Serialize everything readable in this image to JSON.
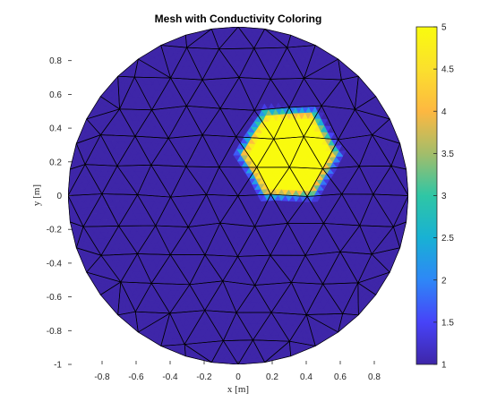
{
  "chart_data": {
    "type": "heatmap",
    "title": "Mesh with Conductivity Coloring",
    "xlabel": "x [m]",
    "ylabel": "y [m]",
    "xlim": [
      -1,
      1
    ],
    "ylim": [
      -1,
      1
    ],
    "xticks": [
      "-0.8",
      "-0.6",
      "-0.4",
      "-0.2",
      "0",
      "0.2",
      "0.4",
      "0.6",
      "0.8"
    ],
    "xtick_values": [
      -0.8,
      -0.6,
      -0.4,
      -0.2,
      0,
      0.2,
      0.4,
      0.6,
      0.8
    ],
    "yticks": [
      "-1",
      "-0.8",
      "-0.6",
      "-0.4",
      "-0.2",
      "0",
      "0.2",
      "0.4",
      "0.6",
      "0.8"
    ],
    "ytick_values": [
      -1,
      -0.8,
      -0.6,
      -0.4,
      -0.2,
      0,
      0.2,
      0.4,
      0.6,
      0.8
    ],
    "domain": {
      "shape": "disk",
      "center": [
        0,
        0
      ],
      "radius": 1
    },
    "conductivity": {
      "background": 1,
      "inclusion": 5,
      "inclusion_center": [
        0.3,
        0.25
      ],
      "inclusion_shape": "hexagon"
    },
    "colorbar": {
      "ticks": [
        "1",
        "1.5",
        "2",
        "2.5",
        "3",
        "3.5",
        "4",
        "4.5",
        "5"
      ],
      "tick_values": [
        1,
        1.5,
        2,
        2.5,
        3,
        3.5,
        4,
        4.5,
        5
      ],
      "range": [
        1,
        5
      ],
      "colormap": [
        "#3e26a8",
        "#4743f8",
        "#2e87f7",
        "#18b1d4",
        "#2fc6a5",
        "#a3bd6a",
        "#fdb841",
        "#fbe02d",
        "#f9fb0e"
      ]
    },
    "grid": false
  }
}
